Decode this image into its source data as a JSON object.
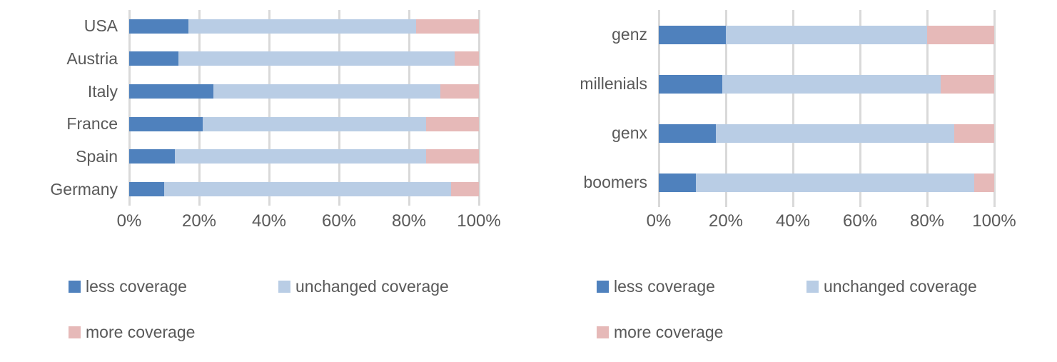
{
  "colors": {
    "less": "#4F81BD",
    "unchanged": "#B9CDE5",
    "more": "#E6B9B8",
    "gridline": "#D9D9D9",
    "text": "#595959"
  },
  "chart_data": [
    {
      "type": "bar",
      "orientation": "horizontal",
      "stacked": true,
      "title": "",
      "xlabel": "",
      "ylabel": "",
      "xlim": [
        0,
        100
      ],
      "grid": true,
      "legend_position": "bottom",
      "x_ticks": [
        "0%",
        "20%",
        "40%",
        "60%",
        "80%",
        "100%"
      ],
      "categories": [
        "USA",
        "Austria",
        "Italy",
        "France",
        "Spain",
        "Germany"
      ],
      "series": [
        {
          "name": "less coverage",
          "color_key": "less",
          "values": [
            17,
            14,
            24,
            21,
            13,
            10
          ]
        },
        {
          "name": "unchanged coverage",
          "color_key": "unchanged",
          "values": [
            65,
            79,
            65,
            64,
            72,
            82
          ]
        },
        {
          "name": "more coverage",
          "color_key": "more",
          "values": [
            18,
            7,
            11,
            15,
            15,
            8
          ]
        }
      ]
    },
    {
      "type": "bar",
      "orientation": "horizontal",
      "stacked": true,
      "title": "",
      "xlabel": "",
      "ylabel": "",
      "xlim": [
        0,
        100
      ],
      "grid": true,
      "legend_position": "bottom",
      "x_ticks": [
        "0%",
        "20%",
        "40%",
        "60%",
        "80%",
        "100%"
      ],
      "categories": [
        "genz",
        "millenials",
        "genx",
        "boomers"
      ],
      "series": [
        {
          "name": "less coverage",
          "color_key": "less",
          "values": [
            20,
            19,
            17,
            11
          ]
        },
        {
          "name": "unchanged coverage",
          "color_key": "unchanged",
          "values": [
            60,
            65,
            71,
            83
          ]
        },
        {
          "name": "more coverage",
          "color_key": "more",
          "values": [
            20,
            16,
            12,
            6
          ]
        }
      ]
    }
  ]
}
